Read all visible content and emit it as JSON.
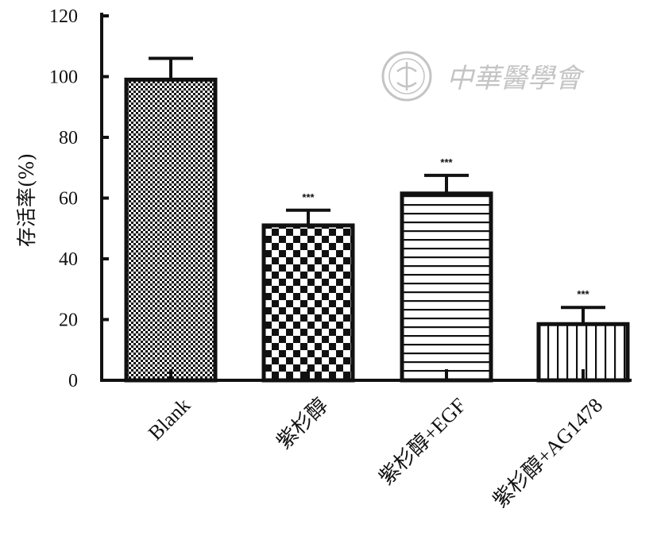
{
  "chart_data": {
    "type": "bar",
    "categories": [
      "Blank",
      "紫杉醇",
      "紫杉醇+EGF",
      "紫杉醇+AG1478"
    ],
    "values": [
      99,
      51,
      61.5,
      18.5
    ],
    "errors": [
      7,
      5,
      6,
      5.5
    ],
    "significance": [
      "",
      "***",
      "***",
      "***"
    ],
    "patterns": [
      "fine-checker",
      "checker",
      "horizontal-lines",
      "vertical-lines"
    ],
    "title": "",
    "xlabel": "",
    "ylabel": "存活率(%)",
    "ylim": [
      0,
      120
    ],
    "yticks": [
      0,
      20,
      40,
      60,
      80,
      100,
      120
    ],
    "grid": false
  },
  "watermark": {
    "text": "中華醫學會",
    "color": "#c4c4c4"
  }
}
